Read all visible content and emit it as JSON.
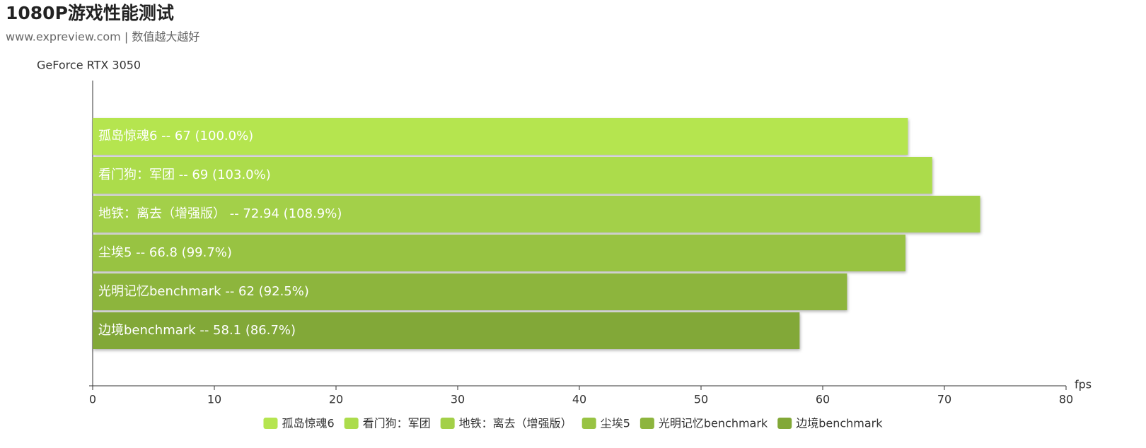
{
  "chart_data": {
    "type": "hbar",
    "title": "1080P游戏性能测试",
    "subtitle": "www.expreview.com | 数值越大越好",
    "y_axis_title": "GeForce RTX 3050",
    "x_axis_title": "fps",
    "xlim": [
      0,
      80
    ],
    "xticks": [
      0,
      10,
      20,
      30,
      40,
      50,
      60,
      70,
      80
    ],
    "series": [
      {
        "name": "孤岛惊魂6",
        "color": "#b5e550",
        "values": [
          67
        ],
        "value_labels": [
          "孤岛惊魂6  --  67 (100.0%)"
        ]
      },
      {
        "name": "看门狗：军团",
        "color": "#acdc4c",
        "values": [
          69
        ],
        "value_labels": [
          "看门狗：军团  --  69 (103.0%)"
        ]
      },
      {
        "name": "地铁：离去（增强版）",
        "color": "#a3d048",
        "values": [
          72.94
        ],
        "value_labels": [
          "地铁：离去（增强版）  --  72.94 (108.9%)"
        ]
      },
      {
        "name": "尘埃5",
        "color": "#98c343",
        "values": [
          66.8
        ],
        "value_labels": [
          "尘埃5  --  66.8 (99.7%)"
        ]
      },
      {
        "name": "光明记忆benchmark",
        "color": "#8db53e",
        "values": [
          62
        ],
        "value_labels": [
          "光明记忆benchmark  --  62 (92.5%)"
        ]
      },
      {
        "name": "边境benchmark",
        "color": "#82a837",
        "values": [
          58.1
        ],
        "value_labels": [
          "边境benchmark  --  58.1 (86.7%)"
        ]
      }
    ]
  }
}
